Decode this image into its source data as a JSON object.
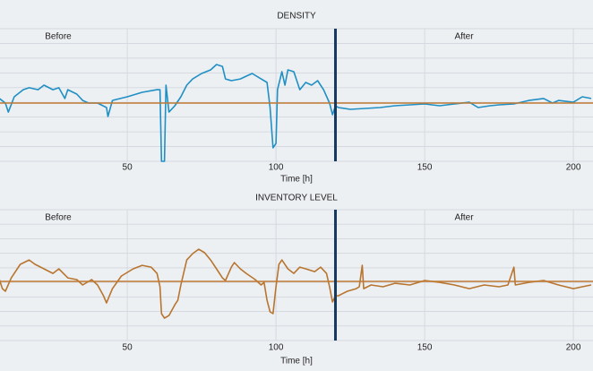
{
  "chart_data": [
    {
      "type": "line",
      "title": "DENSITY",
      "xlabel": "Time [h]",
      "annotations": [
        "Before",
        "After"
      ],
      "color": "#1f8fc4",
      "reference": 39.5,
      "reference_color": "#c07a34",
      "divider": 120,
      "divider_color": "#163a5f",
      "xlim": [
        7.2,
        206.6
      ],
      "xticks": [
        50,
        100,
        150,
        200
      ],
      "ylim": [
        0,
        90
      ],
      "ygrid": [
        0,
        10,
        20,
        30,
        40,
        50,
        60,
        70,
        80,
        90
      ],
      "grid": true,
      "x": [
        7,
        9,
        10,
        12,
        15,
        17,
        20,
        22,
        25,
        27,
        29,
        30,
        33,
        35,
        37,
        40,
        43,
        43.5,
        45,
        50,
        55,
        60,
        61,
        61.5,
        62.5,
        63,
        64,
        66,
        68,
        70,
        72,
        75,
        78,
        80,
        82,
        83,
        85,
        88,
        90,
        92,
        95,
        97,
        98,
        99,
        100,
        100.5,
        102,
        103,
        104,
        106,
        108,
        110,
        112,
        114,
        116,
        118,
        119,
        120,
        121,
        125,
        130,
        135,
        140,
        145,
        150,
        155,
        160,
        165,
        168,
        172,
        175,
        180,
        185,
        190,
        193,
        195,
        200,
        203,
        206
      ],
      "values": [
        42.6,
        39.5,
        33.4,
        43.8,
        48.6,
        49.9,
        48.6,
        51.7,
        48.6,
        49.9,
        42.6,
        48.6,
        45.6,
        41.3,
        39.5,
        39.5,
        36.5,
        30.4,
        41.3,
        43.8,
        46.8,
        48.6,
        48.6,
        0,
        0,
        51.7,
        33.4,
        37.7,
        43.8,
        51.7,
        55.9,
        59.6,
        62.0,
        65.7,
        64.4,
        55.9,
        54.7,
        55.9,
        57.8,
        59.6,
        55.9,
        53.5,
        36.5,
        9.1,
        12.2,
        48.6,
        60.8,
        51.7,
        62.0,
        60.8,
        48.6,
        53.5,
        51.7,
        54.7,
        48.6,
        39.5,
        31.6,
        37.7,
        36.5,
        35.3,
        35.9,
        36.5,
        37.7,
        38.3,
        38.9,
        37.7,
        38.9,
        40.1,
        36.5,
        37.7,
        38.3,
        38.9,
        41.3,
        42.6,
        39.5,
        41.3,
        40.1,
        43.8,
        42.6
      ]
    },
    {
      "type": "line",
      "title": "INVENTORY LEVEL",
      "xlabel": "Time [h]",
      "annotations": [
        "Before",
        "After"
      ],
      "color": "#b8752f",
      "reference": 40.7,
      "reference_color": "#c07a34",
      "divider": 120,
      "divider_color": "#163a5f",
      "xlim": [
        7.2,
        206.6
      ],
      "xticks": [
        50,
        100,
        150,
        200
      ],
      "ylim": [
        0,
        90
      ],
      "ygrid": [
        0,
        10,
        20,
        30,
        40,
        50,
        60,
        70,
        80,
        90
      ],
      "grid": true,
      "x": [
        7,
        8,
        9,
        11,
        14,
        17,
        19,
        22,
        25,
        27,
        30,
        33,
        35,
        38,
        40,
        42,
        43,
        45,
        48,
        52,
        55,
        58,
        60,
        61,
        61.5,
        62.5,
        64,
        66,
        67,
        68,
        70,
        72,
        74,
        76,
        78,
        80,
        82,
        83,
        85,
        86,
        88,
        90,
        93,
        95,
        96,
        97,
        98,
        99,
        100,
        101,
        102,
        104,
        106,
        108,
        110,
        113,
        115,
        117,
        118,
        119,
        120,
        121,
        124,
        127,
        128,
        129,
        129.5,
        132,
        136,
        140,
        145,
        150,
        155,
        160,
        165,
        170,
        175,
        178,
        180,
        180.5,
        185,
        190,
        195,
        200,
        203,
        206
      ],
      "values": [
        41.9,
        35.7,
        33.9,
        43.1,
        52.4,
        55.4,
        52.4,
        49.3,
        46.2,
        49.3,
        43.1,
        41.9,
        38.2,
        41.9,
        38.2,
        30.8,
        25.9,
        35.7,
        44.4,
        49.3,
        51.7,
        50.5,
        46.2,
        37.0,
        18.5,
        15.4,
        17.2,
        24.6,
        27.7,
        38.2,
        55.4,
        59.8,
        62.8,
        60.4,
        55.4,
        49.3,
        43.1,
        41.3,
        50.5,
        53.6,
        49.3,
        46.2,
        41.9,
        38.2,
        40.0,
        27.7,
        19.7,
        18.5,
        37.0,
        52.4,
        55.4,
        49.3,
        46.2,
        50.5,
        49.3,
        47.4,
        50.5,
        46.2,
        37.0,
        26.5,
        30.8,
        30.8,
        33.9,
        35.7,
        37.0,
        51.7,
        35.7,
        38.2,
        37.0,
        39.4,
        38.2,
        41.3,
        40.0,
        38.2,
        35.7,
        38.2,
        37.0,
        38.2,
        50.5,
        38.2,
        40.0,
        41.3,
        38.2,
        35.7,
        37.0,
        38.2
      ]
    }
  ]
}
